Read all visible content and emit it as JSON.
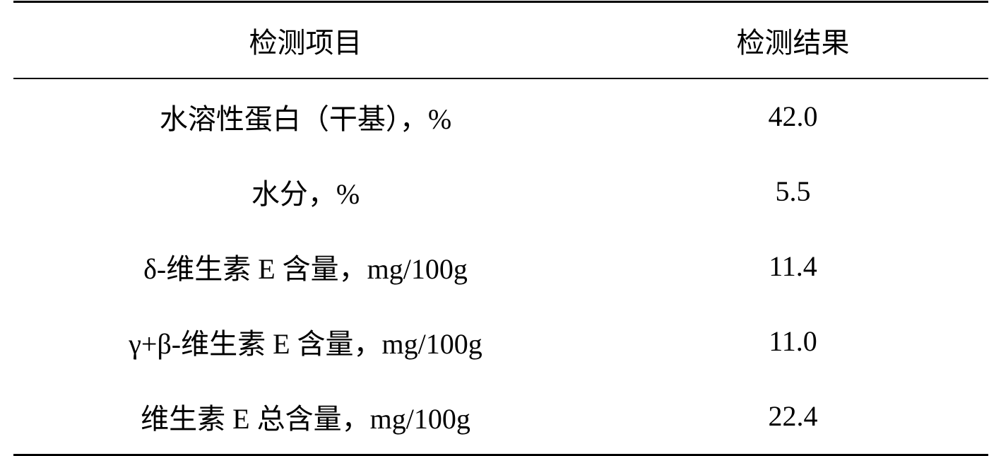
{
  "table": {
    "columns": [
      "检测项目",
      "检测结果"
    ],
    "rows": [
      {
        "item": "水溶性蛋白（干基），%",
        "value": "42.0"
      },
      {
        "item": "水分，%",
        "value": "5.5"
      },
      {
        "item": "δ-维生素 E 含量，mg/100g",
        "value": "11.4"
      },
      {
        "item": "γ+β-维生素 E 含量，mg/100g",
        "value": "11.0"
      },
      {
        "item": "维生素 E 总含量，mg/100g",
        "value": "22.4"
      }
    ],
    "border_color": "#000000",
    "background_color": "#ffffff",
    "header_fontsize": 40,
    "body_fontsize": 40,
    "col_widths": [
      "60%",
      "40%"
    ]
  }
}
